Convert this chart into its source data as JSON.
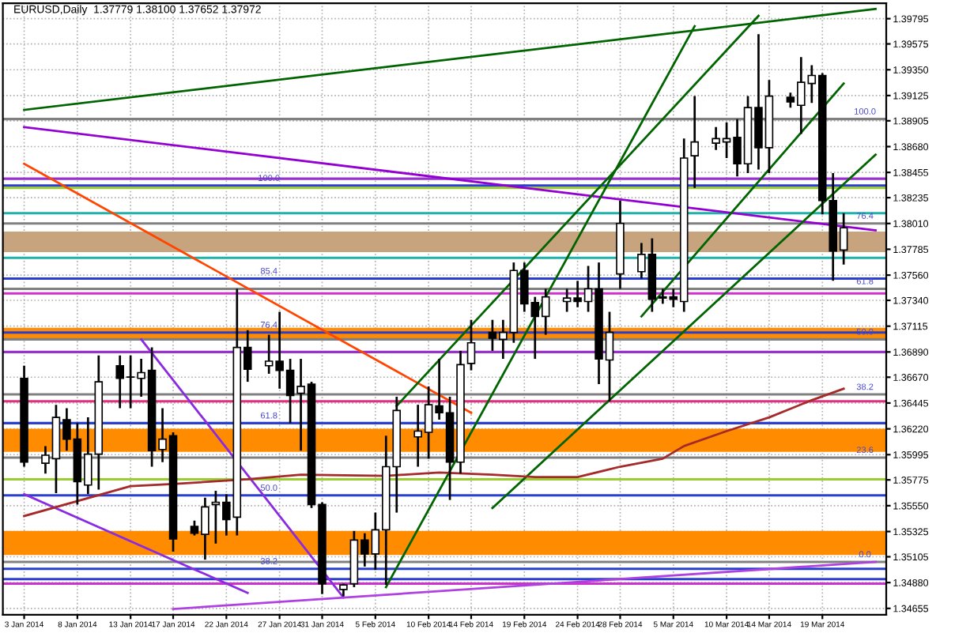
{
  "chart_data": {
    "type": "candlestick",
    "title": "EURUSD,Daily  1.37779 1.38100 1.37652 1.37972",
    "x": [
      "2014-01-03",
      "2014-01-05",
      "2014-01-06",
      "2014-01-07",
      "2014-01-08",
      "2014-01-09",
      "2014-01-10",
      "2014-01-12",
      "2014-01-13",
      "2014-01-14",
      "2014-01-15",
      "2014-01-16",
      "2014-01-17",
      "2014-01-19",
      "2014-01-20",
      "2014-01-21",
      "2014-01-22",
      "2014-01-23",
      "2014-01-24",
      "2014-01-26",
      "2014-01-27",
      "2014-01-28",
      "2014-01-29",
      "2014-01-30",
      "2014-01-31",
      "2014-02-02",
      "2014-02-03",
      "2014-02-04",
      "2014-02-05",
      "2014-02-06",
      "2014-02-07",
      "2014-02-09",
      "2014-02-10",
      "2014-02-11",
      "2014-02-12",
      "2014-02-13",
      "2014-02-14",
      "2014-02-16",
      "2014-02-17",
      "2014-02-18",
      "2014-02-19",
      "2014-02-20",
      "2014-02-21",
      "2014-02-23",
      "2014-02-24",
      "2014-02-25",
      "2014-02-26",
      "2014-02-27",
      "2014-02-28",
      "2014-03-02",
      "2014-03-03",
      "2014-03-04",
      "2014-03-05",
      "2014-03-06",
      "2014-03-07",
      "2014-03-09",
      "2014-03-10",
      "2014-03-11",
      "2014-03-12",
      "2014-03-13",
      "2014-03-14",
      "2014-03-16",
      "2014-03-17",
      "2014-03-18",
      "2014-03-19",
      "2014-03-20",
      "2014-03-21"
    ],
    "ohlc": [
      [
        1.3666,
        1.3677,
        1.3589,
        1.3593
      ],
      [
        1.3592,
        1.3607,
        1.3583,
        1.3599
      ],
      [
        1.3596,
        1.3643,
        1.3566,
        1.3632
      ],
      [
        1.363,
        1.364,
        1.3603,
        1.3613
      ],
      [
        1.3613,
        1.3627,
        1.3556,
        1.3576
      ],
      [
        1.3573,
        1.3632,
        1.3565,
        1.36
      ],
      [
        1.36,
        1.3686,
        1.3569,
        1.3663
      ],
      [
        1.3677,
        1.3686,
        1.364,
        1.3666
      ],
      [
        1.3667,
        1.3686,
        1.364,
        1.3667
      ],
      [
        1.3666,
        1.3683,
        1.365,
        1.3671
      ],
      [
        1.3673,
        1.3693,
        1.3589,
        1.3603
      ],
      [
        1.3604,
        1.364,
        1.3593,
        1.3613
      ],
      [
        1.3616,
        1.3619,
        1.3515,
        1.3526
      ],
      [
        1.3537,
        1.3542,
        1.3529,
        1.3531
      ],
      [
        1.353,
        1.3562,
        1.3508,
        1.3554
      ],
      [
        1.3556,
        1.3568,
        1.3522,
        1.3558
      ],
      [
        1.3558,
        1.3565,
        1.3529,
        1.3543
      ],
      [
        1.3545,
        1.3744,
        1.3529,
        1.3693
      ],
      [
        1.3693,
        1.3708,
        1.3663,
        1.3674
      ],
      [
        1.3677,
        1.3704,
        1.367,
        1.3681
      ],
      [
        1.3681,
        1.3724,
        1.3657,
        1.3673
      ],
      [
        1.3673,
        1.3683,
        1.3627,
        1.3651
      ],
      [
        1.3653,
        1.3683,
        1.3603,
        1.3659
      ],
      [
        1.3661,
        1.3663,
        1.3553,
        1.3556
      ],
      [
        1.3556,
        1.3558,
        1.3478,
        1.3487
      ],
      [
        1.3482,
        1.3487,
        1.3476,
        1.3486
      ],
      [
        1.3487,
        1.3533,
        1.3484,
        1.3525
      ],
      [
        1.3525,
        1.3531,
        1.3502,
        1.3513
      ],
      [
        1.3513,
        1.3549,
        1.3499,
        1.3534
      ],
      [
        1.3534,
        1.3616,
        1.3486,
        1.3589
      ],
      [
        1.3589,
        1.365,
        1.3549,
        1.3638
      ],
      [
        1.3615,
        1.3643,
        1.3589,
        1.362
      ],
      [
        1.3619,
        1.3659,
        1.3596,
        1.3643
      ],
      [
        1.3642,
        1.3683,
        1.363,
        1.3636
      ],
      [
        1.3636,
        1.365,
        1.356,
        1.3593
      ],
      [
        1.3593,
        1.369,
        1.3583,
        1.3678
      ],
      [
        1.3679,
        1.3717,
        1.3673,
        1.3697
      ],
      [
        1.3706,
        1.3717,
        1.369,
        1.3701
      ],
      [
        1.37,
        1.3717,
        1.3683,
        1.3706
      ],
      [
        1.3706,
        1.3767,
        1.3697,
        1.376
      ],
      [
        1.376,
        1.3767,
        1.3724,
        1.3731
      ],
      [
        1.3732,
        1.3737,
        1.3683,
        1.372
      ],
      [
        1.372,
        1.3744,
        1.3704,
        1.3737
      ],
      [
        1.3733,
        1.3744,
        1.3724,
        1.3736
      ],
      [
        1.3736,
        1.3751,
        1.3728,
        1.3733
      ],
      [
        1.3733,
        1.3764,
        1.3724,
        1.3744
      ],
      [
        1.3744,
        1.3767,
        1.3661,
        1.3683
      ],
      [
        1.3682,
        1.3724,
        1.3646,
        1.3706
      ],
      [
        1.3757,
        1.3821,
        1.3744,
        1.3801
      ],
      [
        1.3759,
        1.3784,
        1.3753,
        1.3774
      ],
      [
        1.3774,
        1.3788,
        1.3724,
        1.3735
      ],
      [
        1.3736,
        1.3744,
        1.3731,
        1.3737
      ],
      [
        1.3737,
        1.3744,
        1.3728,
        1.3735
      ],
      [
        1.3733,
        1.3875,
        1.3724,
        1.3858
      ],
      [
        1.386,
        1.3912,
        1.3832,
        1.3872
      ],
      [
        1.3871,
        1.3885,
        1.3865,
        1.3875
      ],
      [
        1.3872,
        1.3889,
        1.3858,
        1.3875
      ],
      [
        1.3876,
        1.3892,
        1.3842,
        1.3853
      ],
      [
        1.3853,
        1.3912,
        1.3845,
        1.3902
      ],
      [
        1.3902,
        1.3966,
        1.3848,
        1.3867
      ],
      [
        1.3867,
        1.3926,
        1.3845,
        1.3912
      ],
      [
        1.3911,
        1.3915,
        1.3902,
        1.3907
      ],
      [
        1.3904,
        1.3946,
        1.3879,
        1.3924
      ],
      [
        1.3923,
        1.3939,
        1.3906,
        1.393
      ],
      [
        1.393,
        1.3932,
        1.3809,
        1.3821
      ],
      [
        1.3821,
        1.3845,
        1.3751,
        1.3777
      ],
      [
        1.37779,
        1.381,
        1.37652,
        1.37972
      ]
    ],
    "series": [
      {
        "type": "line",
        "color": "#006400",
        "x": [
          "2014-01-03",
          "2014-03-24"
        ],
        "values": [
          1.39,
          1.3988
        ]
      },
      {
        "type": "line",
        "color": "#9400d3",
        "x": [
          "2014-01-03",
          "2014-03-24"
        ],
        "values": [
          1.3885,
          1.3795
        ]
      },
      {
        "type": "line",
        "color": "#ff4500",
        "x": [
          "2014-01-03",
          "2014-02-14"
        ],
        "values": [
          1.3853,
          1.3636
        ]
      },
      {
        "type": "line",
        "color": "#006400",
        "x": [
          "2014-02-06",
          "2014-03-07"
        ],
        "values": [
          1.3484,
          1.3973
        ]
      },
      {
        "type": "line",
        "color": "#006400",
        "x": [
          "2014-02-07",
          "2014-03-13"
        ],
        "values": [
          1.3642,
          1.3982
        ]
      },
      {
        "type": "line",
        "color": "#006400",
        "x": [
          "2014-02-16",
          "2014-03-24"
        ],
        "values": [
          1.3553,
          1.3861
        ]
      },
      {
        "type": "line",
        "color": "#006400",
        "x": [
          "2014-03-02",
          "2014-03-21"
        ],
        "values": [
          1.372,
          1.3923
        ]
      },
      {
        "type": "line",
        "color": "#8a2be2",
        "x": [
          "2014-01-03",
          "2014-01-24"
        ],
        "values": [
          1.3565,
          1.3479
        ]
      },
      {
        "type": "line",
        "color": "#8a2be2",
        "x": [
          "2014-01-14",
          "2014-02-02"
        ],
        "values": [
          1.37,
          1.3475
        ]
      },
      {
        "type": "line",
        "color": "#b040e0",
        "x": [
          "2014-01-17",
          "2014-03-24"
        ],
        "values": [
          1.3465,
          1.3506
        ]
      },
      {
        "type": "line",
        "color": "#a52a2a",
        "x": [
          "2014-01-03",
          "2014-01-13",
          "2014-01-17",
          "2014-01-24",
          "2014-01-29",
          "2014-02-06",
          "2014-02-11",
          "2014-02-16",
          "2014-02-20",
          "2014-02-24",
          "2014-02-28",
          "2014-03-04",
          "2014-03-06",
          "2014-03-10",
          "2014-03-14",
          "2014-03-18",
          "2014-03-21"
        ],
        "values": [
          1.3546,
          1.3572,
          1.3574,
          1.3578,
          1.3582,
          1.3581,
          1.3584,
          1.3582,
          1.358,
          1.358,
          1.3589,
          1.3596,
          1.3607,
          1.362,
          1.3632,
          1.3647,
          1.3657
        ]
      }
    ],
    "ref_lines": [
      {
        "axis": "y",
        "value": 1.3892,
        "color": "#808080"
      },
      {
        "axis": "y",
        "value": 1.384,
        "color": "#9932cc"
      },
      {
        "axis": "y",
        "value": 1.3834,
        "color": "#2a3fd0"
      },
      {
        "axis": "y",
        "value": 1.3832,
        "color": "#9acd32"
      },
      {
        "axis": "y",
        "value": 1.381,
        "color": "#20b2aa"
      },
      {
        "axis": "y",
        "value": 1.3801,
        "color": "#808080"
      },
      {
        "axis": "y",
        "value": 1.3771,
        "color": "#20b2aa"
      },
      {
        "axis": "y",
        "value": 1.3753,
        "color": "#2a3fd0"
      },
      {
        "axis": "y",
        "value": 1.3744,
        "color": "#808080"
      },
      {
        "axis": "y",
        "value": 1.374,
        "color": "#cc33cc"
      },
      {
        "axis": "y",
        "value": 1.3706,
        "color": "#2a3fd0"
      },
      {
        "axis": "y",
        "value": 1.37,
        "color": "#808080"
      },
      {
        "axis": "y",
        "value": 1.3689,
        "color": "#9932cc"
      },
      {
        "axis": "y",
        "value": 1.3652,
        "color": "#808080"
      },
      {
        "axis": "y",
        "value": 1.3646,
        "color": "#e0307f"
      },
      {
        "axis": "y",
        "value": 1.3627,
        "color": "#2a3fd0"
      },
      {
        "axis": "y",
        "value": 1.3597,
        "color": "#808080"
      },
      {
        "axis": "y",
        "value": 1.3578,
        "color": "#9acd32"
      },
      {
        "axis": "y",
        "value": 1.3564,
        "color": "#2a3fd0"
      },
      {
        "axis": "y",
        "value": 1.3506,
        "color": "#808080"
      },
      {
        "axis": "y",
        "value": 1.35,
        "color": "#2a3fd0"
      },
      {
        "axis": "y",
        "value": 1.3491,
        "color": "#2a3fd0"
      },
      {
        "axis": "y",
        "value": 1.3487,
        "color": "#cc33cc"
      }
    ],
    "bands": [
      {
        "axis": "y",
        "from": 1.3776,
        "to": 1.3794,
        "color": "#c8a47e"
      },
      {
        "axis": "y",
        "from": 1.3701,
        "to": 1.371,
        "color": "#ff8c00"
      },
      {
        "axis": "y",
        "from": 1.3602,
        "to": 1.3622,
        "color": "#ff8c00"
      },
      {
        "axis": "y",
        "from": 1.3512,
        "to": 1.3533,
        "color": "#ff8c00"
      }
    ],
    "annotations": [
      {
        "text": "100.0",
        "x": "2014-03-23",
        "y": 1.3892
      },
      {
        "text": "76.4",
        "x": "2014-03-23",
        "y": 1.3801
      },
      {
        "text": "61.8",
        "x": "2014-03-23",
        "y": 1.3744
      },
      {
        "text": "50.0",
        "x": "2014-03-23",
        "y": 1.37
      },
      {
        "text": "38.2",
        "x": "2014-03-23",
        "y": 1.3652
      },
      {
        "text": "23.6",
        "x": "2014-03-23",
        "y": 1.3597
      },
      {
        "text": "0.0",
        "x": "2014-03-23",
        "y": 1.3506
      },
      {
        "text": "100.0",
        "x": "2014-01-26",
        "y": 1.3834
      },
      {
        "text": "85.4",
        "x": "2014-01-26",
        "y": 1.3753
      },
      {
        "text": "76.4",
        "x": "2014-01-26",
        "y": 1.3706
      },
      {
        "text": "61.8",
        "x": "2014-01-26",
        "y": 1.3627
      },
      {
        "text": "50.0",
        "x": "2014-01-26",
        "y": 1.3564
      },
      {
        "text": "38.2",
        "x": "2014-01-26",
        "y": 1.35
      }
    ],
    "xlim": [
      "2014-01-01",
      "2014-03-25"
    ],
    "xticks": [
      {
        "value": "2014-01-03",
        "label": "3 Jan 2014"
      },
      {
        "value": "2014-01-08",
        "label": "8 Jan 2014"
      },
      {
        "value": "2014-01-13",
        "label": "13 Jan 2014"
      },
      {
        "value": "2014-01-17",
        "label": "17 Jan 2014"
      },
      {
        "value": "2014-01-22",
        "label": "22 Jan 2014"
      },
      {
        "value": "2014-01-27",
        "label": "27 Jan 2014"
      },
      {
        "value": "2014-01-31",
        "label": "31 Jan 2014"
      },
      {
        "value": "2014-02-05",
        "label": "5 Feb 2014"
      },
      {
        "value": "2014-02-10",
        "label": "10 Feb 2014"
      },
      {
        "value": "2014-02-14",
        "label": "14 Feb 2014"
      },
      {
        "value": "2014-02-19",
        "label": "19 Feb 2014"
      },
      {
        "value": "2014-02-24",
        "label": "24 Feb 2014"
      },
      {
        "value": "2014-02-28",
        "label": "28 Feb 2014"
      },
      {
        "value": "2014-03-05",
        "label": "5 Mar 2014"
      },
      {
        "value": "2014-03-10",
        "label": "10 Mar 2014"
      },
      {
        "value": "2014-03-14",
        "label": "14 Mar 2014"
      },
      {
        "value": "2014-03-19",
        "label": "19 Mar 2014"
      }
    ],
    "ylim": [
      1.346,
      1.3993
    ],
    "yticks": [
      1.39795,
      1.39575,
      {
        "value": 1.3935,
        "label": "1.39350"
      },
      1.39125,
      1.38905,
      {
        "value": 1.3868,
        "label": "1.38680"
      },
      1.38455,
      1.38235,
      {
        "value": 1.3801,
        "label": "1.38010"
      },
      1.37785,
      {
        "value": 1.3756,
        "label": "1.37560"
      },
      {
        "value": 1.3734,
        "label": "1.37340"
      },
      1.37115,
      {
        "value": 1.3689,
        "label": "1.36890"
      },
      {
        "value": 1.3667,
        "label": "1.36670"
      },
      1.36445,
      {
        "value": 1.3622,
        "label": "1.36220"
      },
      1.35995,
      1.35775,
      {
        "value": 1.3555,
        "label": "1.35550"
      },
      1.35325,
      1.35105,
      {
        "value": 1.3488,
        "label": "1.34880"
      },
      1.34655
    ],
    "grid": true
  }
}
